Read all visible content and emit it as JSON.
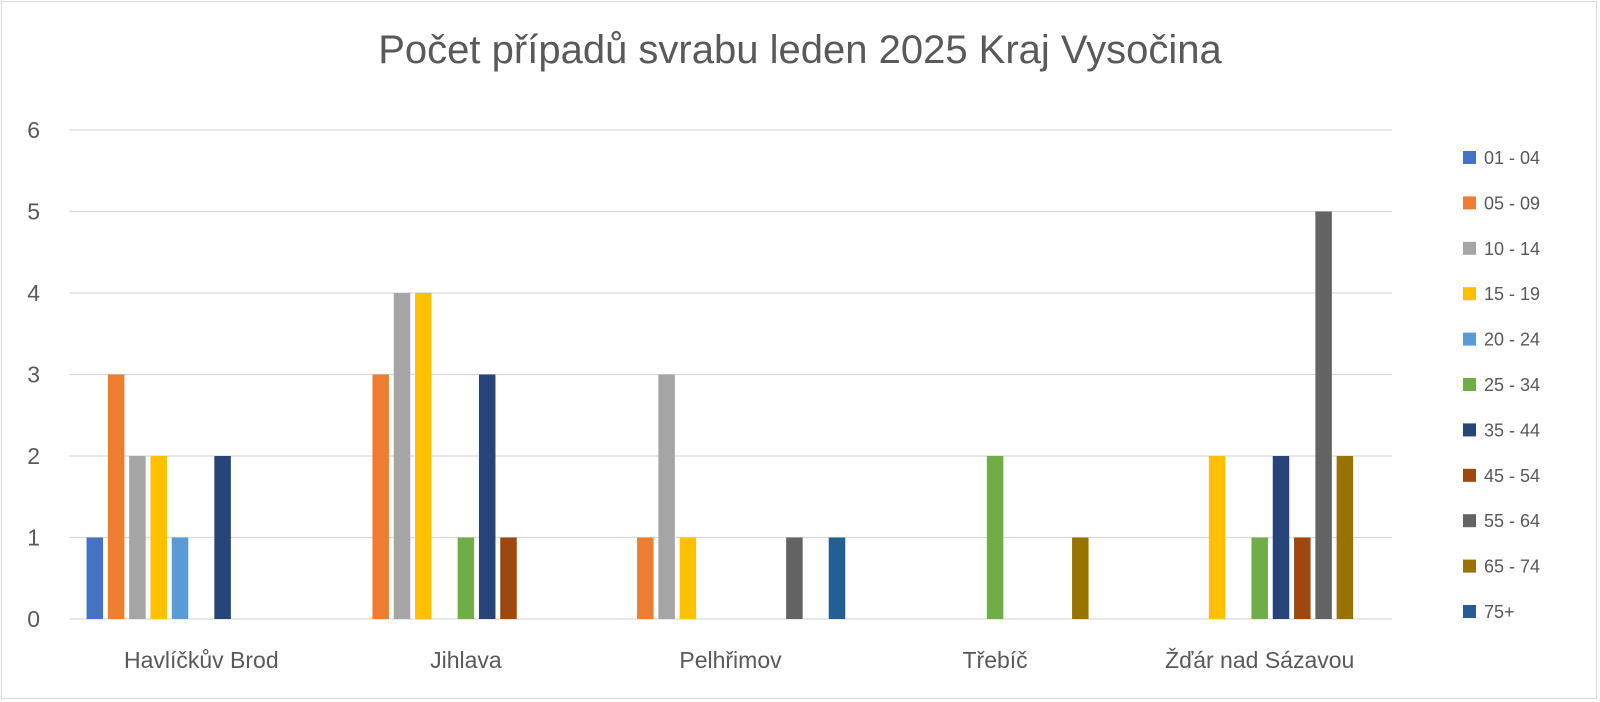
{
  "chart_data": {
    "type": "bar",
    "title": "Počet případů svrabu leden 2025 Kraj Vysočina",
    "categories": [
      "Havlíčkův Brod",
      "Jihlava",
      "Pelhřimov",
      "Třebíč",
      "Žďár nad Sázavou"
    ],
    "y_ticks": [
      "0",
      "1",
      "2",
      "3",
      "4",
      "5",
      "6"
    ],
    "ylim": [
      0,
      6
    ],
    "grid": true,
    "legend_position": "right",
    "series": [
      {
        "name": "01 - 04",
        "color": "#4472C4",
        "values": [
          1,
          0,
          0,
          0,
          0
        ]
      },
      {
        "name": "05 - 09",
        "color": "#ED7D31",
        "values": [
          3,
          3,
          1,
          0,
          0
        ]
      },
      {
        "name": "10 - 14",
        "color": "#A5A5A5",
        "values": [
          2,
          4,
          3,
          0,
          0
        ]
      },
      {
        "name": "15 - 19",
        "color": "#FFC000",
        "values": [
          2,
          4,
          1,
          0,
          2
        ]
      },
      {
        "name": "20 - 24",
        "color": "#5B9BD5",
        "values": [
          1,
          0,
          0,
          0,
          0
        ]
      },
      {
        "name": "25 - 34",
        "color": "#70AD47",
        "values": [
          0,
          1,
          0,
          2,
          1
        ]
      },
      {
        "name": "35 - 44",
        "color": "#264478",
        "values": [
          2,
          3,
          0,
          0,
          2
        ]
      },
      {
        "name": "45 - 54",
        "color": "#9E480E",
        "values": [
          0,
          1,
          0,
          0,
          1
        ]
      },
      {
        "name": "55 - 64",
        "color": "#636363",
        "values": [
          0,
          0,
          1,
          0,
          5
        ]
      },
      {
        "name": "65 - 74",
        "color": "#997300",
        "values": [
          0,
          0,
          0,
          1,
          2
        ]
      },
      {
        "name": "75+",
        "color": "#255E91",
        "values": [
          0,
          0,
          1,
          0,
          0
        ]
      }
    ]
  }
}
